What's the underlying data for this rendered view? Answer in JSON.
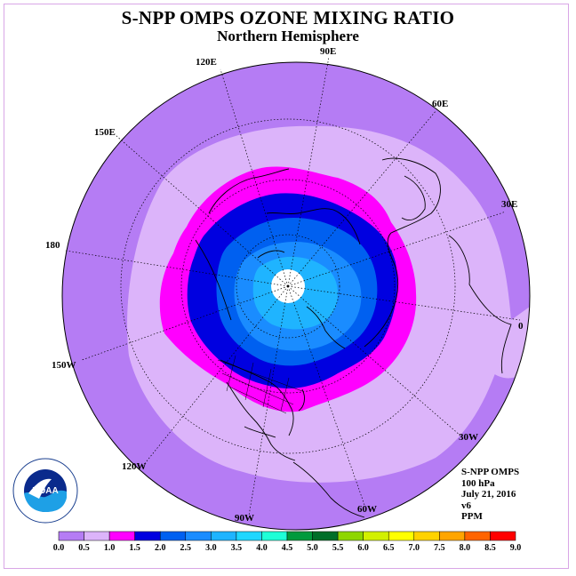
{
  "title": "S-NPP OMPS OZONE MIXING RATIO",
  "subtitle": "Northern Hemisphere",
  "longitude_labels": [
    "90E",
    "60E",
    "30E",
    "0",
    "30W",
    "60W",
    "90W",
    "120W",
    "150W",
    "180",
    "150E",
    "120E"
  ],
  "info": {
    "line1": "S-NPP OMPS",
    "line2": "100 hPa",
    "line3": "July 21, 2016",
    "line4": "v6",
    "line5": "PPM"
  },
  "logo_text": "NOAA",
  "colorbar": {
    "ticks": [
      "0.0",
      "0.5",
      "1.0",
      "1.5",
      "2.0",
      "2.5",
      "3.0",
      "3.5",
      "4.0",
      "4.5",
      "5.0",
      "5.5",
      "6.0",
      "6.5",
      "7.0",
      "7.5",
      "8.0",
      "8.5",
      "9.0"
    ],
    "colors": [
      "#b57cf4",
      "#dcb4fa",
      "#ff00ff",
      "#0000e0",
      "#0060f0",
      "#1a8cff",
      "#1fb4ff",
      "#1fd7ff",
      "#1fffd7",
      "#009a3c",
      "#006e28",
      "#8ed600",
      "#d2f000",
      "#ffff00",
      "#ffd200",
      "#ffa500",
      "#ff6400",
      "#ff0000",
      "#8c5032"
    ]
  },
  "map_colors": {
    "outer": "#b57cf4",
    "band_0_5": "#dcb4fa",
    "band_1_0": "#ff00ff",
    "band_1_5": "#0000e0",
    "band_2_0": "#0060f0",
    "band_2_5": "#1a8cff",
    "band_3_0": "#1fb4ff",
    "pole": "#ffffff"
  }
}
